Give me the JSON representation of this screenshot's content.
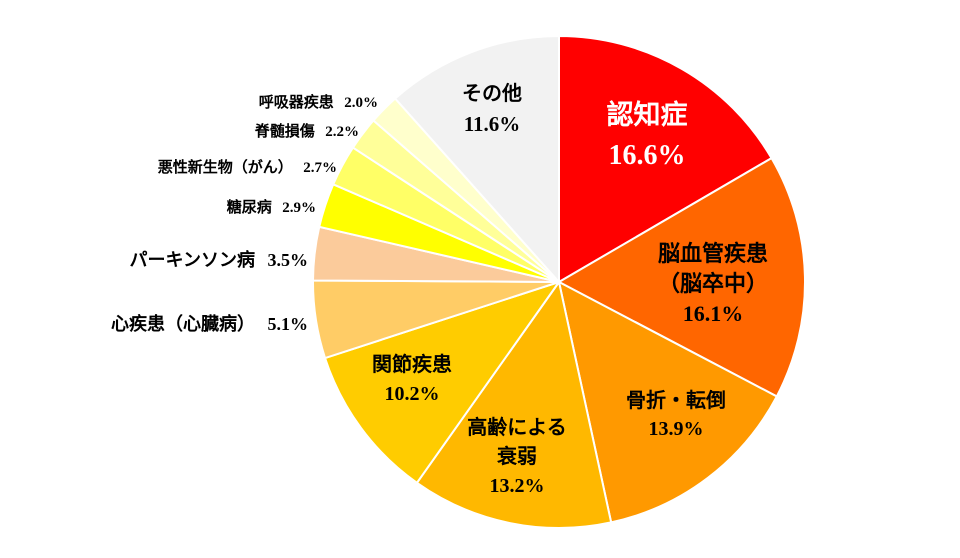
{
  "chart_data": {
    "type": "pie",
    "title": "",
    "slices": [
      {
        "label": [
          "認知症"
        ],
        "value": 16.6,
        "value_text": "16.6%",
        "color": "#ff0000",
        "text_color": "#ffffff",
        "label_placement": "inside"
      },
      {
        "label": [
          "脳血管疾患",
          "（脳卒中）"
        ],
        "value": 16.1,
        "value_text": "16.1%",
        "color": "#ff6600",
        "text_color": "#000000",
        "label_placement": "inside"
      },
      {
        "label": [
          "骨折・転倒"
        ],
        "value": 13.9,
        "value_text": "13.9%",
        "color": "#ff9900",
        "text_color": "#000000",
        "label_placement": "inside"
      },
      {
        "label": [
          "高齢による",
          "衰弱"
        ],
        "value": 13.2,
        "value_text": "13.2%",
        "color": "#ffb800",
        "text_color": "#000000",
        "label_placement": "inside"
      },
      {
        "label": [
          "関節疾患"
        ],
        "value": 10.2,
        "value_text": "10.2%",
        "color": "#ffcc00",
        "text_color": "#000000",
        "label_placement": "inside"
      },
      {
        "label": [
          "心疾患（心臓病）"
        ],
        "value": 5.1,
        "value_text": "5.1%",
        "color": "#ffcc66",
        "text_color": "#000000",
        "label_placement": "outside"
      },
      {
        "label": [
          "パーキンソン病"
        ],
        "value": 3.5,
        "value_text": "3.5%",
        "color": "#fbcb9b",
        "text_color": "#000000",
        "label_placement": "outside"
      },
      {
        "label": [
          "糖尿病"
        ],
        "value": 2.9,
        "value_text": "2.9%",
        "color": "#ffff00",
        "text_color": "#000000",
        "label_placement": "outside"
      },
      {
        "label": [
          "悪性新生物（がん）"
        ],
        "value": 2.7,
        "value_text": "2.7%",
        "color": "#ffff66",
        "text_color": "#000000",
        "label_placement": "outside"
      },
      {
        "label": [
          "脊髄損傷"
        ],
        "value": 2.2,
        "value_text": "2.2%",
        "color": "#ffff99",
        "text_color": "#000000",
        "label_placement": "outside"
      },
      {
        "label": [
          "呼吸器疾患"
        ],
        "value": 2.0,
        "value_text": "2.0%",
        "color": "#ffffcc",
        "text_color": "#000000",
        "label_placement": "outside"
      },
      {
        "label": [
          "その他"
        ],
        "value": 11.6,
        "value_text": "11.6%",
        "color": "#f2f2f2",
        "text_color": "#000000",
        "label_placement": "inside"
      }
    ],
    "start_angle": "12 o'clock",
    "direction": "clockwise",
    "legend": "none"
  }
}
